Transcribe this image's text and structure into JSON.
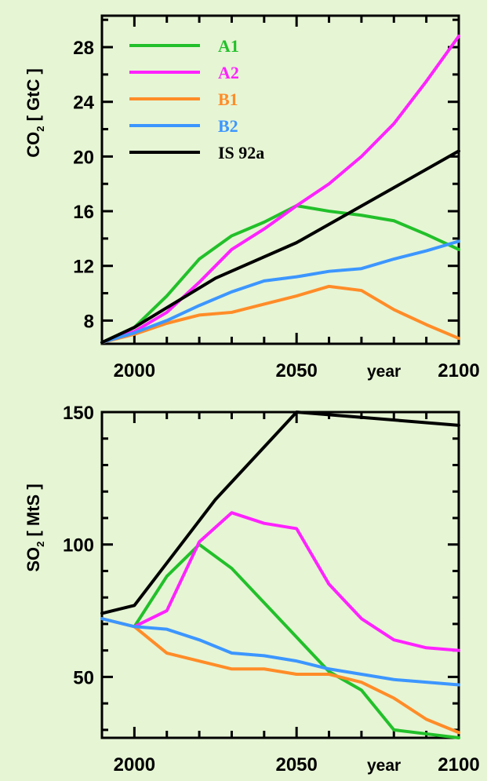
{
  "chart_data": [
    {
      "type": "line",
      "ylabel": {
        "main": "CO",
        "sub": "2",
        "rest": " [ GtC ]"
      },
      "xlim": [
        1990,
        2100
      ],
      "ylim": [
        6.3,
        30.3
      ],
      "xtick_labels": [
        {
          "value": 2000,
          "text": "2000"
        },
        {
          "value": 2050,
          "text": "2050"
        },
        {
          "value": 2100,
          "text": "2100"
        }
      ],
      "x_unit_label": {
        "value": 2075,
        "text": "year"
      },
      "ytick_labels": [
        {
          "value": 8,
          "text": "8"
        },
        {
          "value": 12,
          "text": "12"
        },
        {
          "value": 16,
          "text": "16"
        },
        {
          "value": 20,
          "text": "20"
        },
        {
          "value": 24,
          "text": "24"
        },
        {
          "value": 28,
          "text": "28"
        }
      ],
      "legend_position": "top-left",
      "series": [
        {
          "name": "A1",
          "color": "#22c02a",
          "x": [
            1990,
            2000,
            2010,
            2020,
            2030,
            2040,
            2050,
            2060,
            2070,
            2080,
            2090,
            2100
          ],
          "y": [
            6.4,
            7.5,
            9.8,
            12.5,
            14.2,
            15.2,
            16.4,
            16.0,
            15.7,
            15.3,
            14.3,
            13.2
          ]
        },
        {
          "name": "A2",
          "color": "#ff22ff",
          "x": [
            1990,
            2000,
            2010,
            2020,
            2030,
            2040,
            2050,
            2060,
            2070,
            2080,
            2090,
            2100
          ],
          "y": [
            6.4,
            7.2,
            8.6,
            10.8,
            13.2,
            14.7,
            16.4,
            18.0,
            20.0,
            22.4,
            25.5,
            28.8
          ]
        },
        {
          "name": "B1",
          "color": "#ff8c28",
          "x": [
            1990,
            2000,
            2010,
            2020,
            2030,
            2040,
            2050,
            2060,
            2070,
            2080,
            2090,
            2100
          ],
          "y": [
            6.4,
            7.0,
            7.8,
            8.4,
            8.6,
            9.2,
            9.8,
            10.5,
            10.2,
            8.8,
            7.7,
            6.7
          ]
        },
        {
          "name": "B2",
          "color": "#3c96ff",
          "x": [
            1990,
            2000,
            2010,
            2020,
            2030,
            2040,
            2050,
            2060,
            2070,
            2080,
            2090,
            2100
          ],
          "y": [
            6.4,
            7.1,
            8.0,
            9.1,
            10.1,
            10.9,
            11.2,
            11.6,
            11.8,
            12.5,
            13.1,
            13.8
          ]
        },
        {
          "name": "IS 92a",
          "color": "#000000",
          "x": [
            1990,
            2000,
            2025,
            2050,
            2100
          ],
          "y": [
            6.4,
            7.5,
            11.1,
            13.7,
            20.4
          ]
        }
      ]
    },
    {
      "type": "line",
      "ylabel": {
        "main": "SO",
        "sub": "2",
        "rest": " [ MtS ]"
      },
      "xlim": [
        1990,
        2100
      ],
      "ylim": [
        27,
        150
      ],
      "xtick_labels": [
        {
          "value": 2000,
          "text": "2000"
        },
        {
          "value": 2050,
          "text": "2050"
        },
        {
          "value": 2100,
          "text": "2100"
        }
      ],
      "x_unit_label": {
        "value": 2075,
        "text": "year"
      },
      "ytick_labels": [
        {
          "value": 50,
          "text": "50"
        },
        {
          "value": 100,
          "text": "100"
        },
        {
          "value": 150,
          "text": "150"
        }
      ],
      "series": [
        {
          "name": "A1",
          "color": "#22c02a",
          "x": [
            2000,
            2010,
            2020,
            2030,
            2040,
            2050,
            2060,
            2070,
            2080,
            2090,
            2100
          ],
          "y": [
            69,
            88,
            100,
            91,
            78,
            65,
            52,
            45,
            30,
            28.5,
            27
          ]
        },
        {
          "name": "A2",
          "color": "#ff22ff",
          "x": [
            2000,
            2010,
            2020,
            2030,
            2040,
            2050,
            2060,
            2070,
            2080,
            2090,
            2100
          ],
          "y": [
            69,
            75,
            101,
            112,
            108,
            106,
            85,
            72,
            64,
            61,
            60
          ]
        },
        {
          "name": "B1",
          "color": "#ff8c28",
          "x": [
            1990,
            2000,
            2010,
            2020,
            2030,
            2040,
            2050,
            2060,
            2070,
            2080,
            2090,
            2100
          ],
          "y": [
            72,
            69,
            59,
            56,
            53,
            53,
            51,
            51,
            48,
            42,
            34,
            29
          ]
        },
        {
          "name": "B2",
          "color": "#3c96ff",
          "x": [
            1990,
            2000,
            2010,
            2020,
            2030,
            2040,
            2050,
            2060,
            2070,
            2080,
            2090,
            2100
          ],
          "y": [
            72,
            69,
            68,
            64,
            59,
            58,
            56,
            53,
            51,
            49,
            48,
            47
          ]
        },
        {
          "name": "IS 92a",
          "color": "#000000",
          "x": [
            1990,
            2000,
            2025,
            2050,
            2100
          ],
          "y": [
            74,
            77,
            117,
            150,
            145
          ]
        }
      ]
    }
  ]
}
